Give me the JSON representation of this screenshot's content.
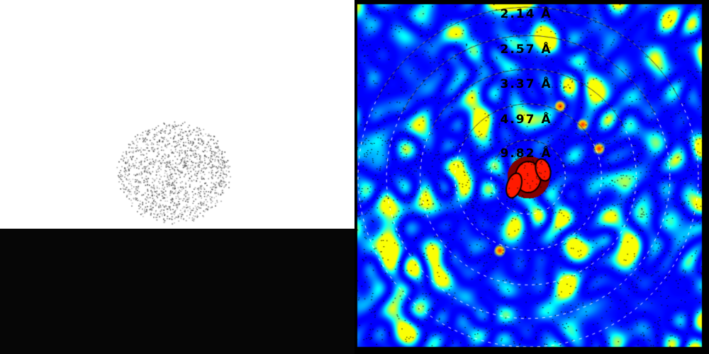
{
  "left_panel": {
    "description_role": "particle image",
    "background_top": "#ffffff",
    "background_bottom": "#060606",
    "dot_color": "#555555"
  },
  "right_panel": {
    "role": "power spectrum",
    "colormap": "jet",
    "resolution_rings": [
      {
        "label": "2.14 Å",
        "resolution": 2.14
      },
      {
        "label": "2.57 Å",
        "resolution": 2.57
      },
      {
        "label": "3.37 Å",
        "resolution": 3.37
      },
      {
        "label": "4.97 Å",
        "resolution": 4.97
      },
      {
        "label": "9.82 Å",
        "resolution": 9.82
      }
    ]
  }
}
